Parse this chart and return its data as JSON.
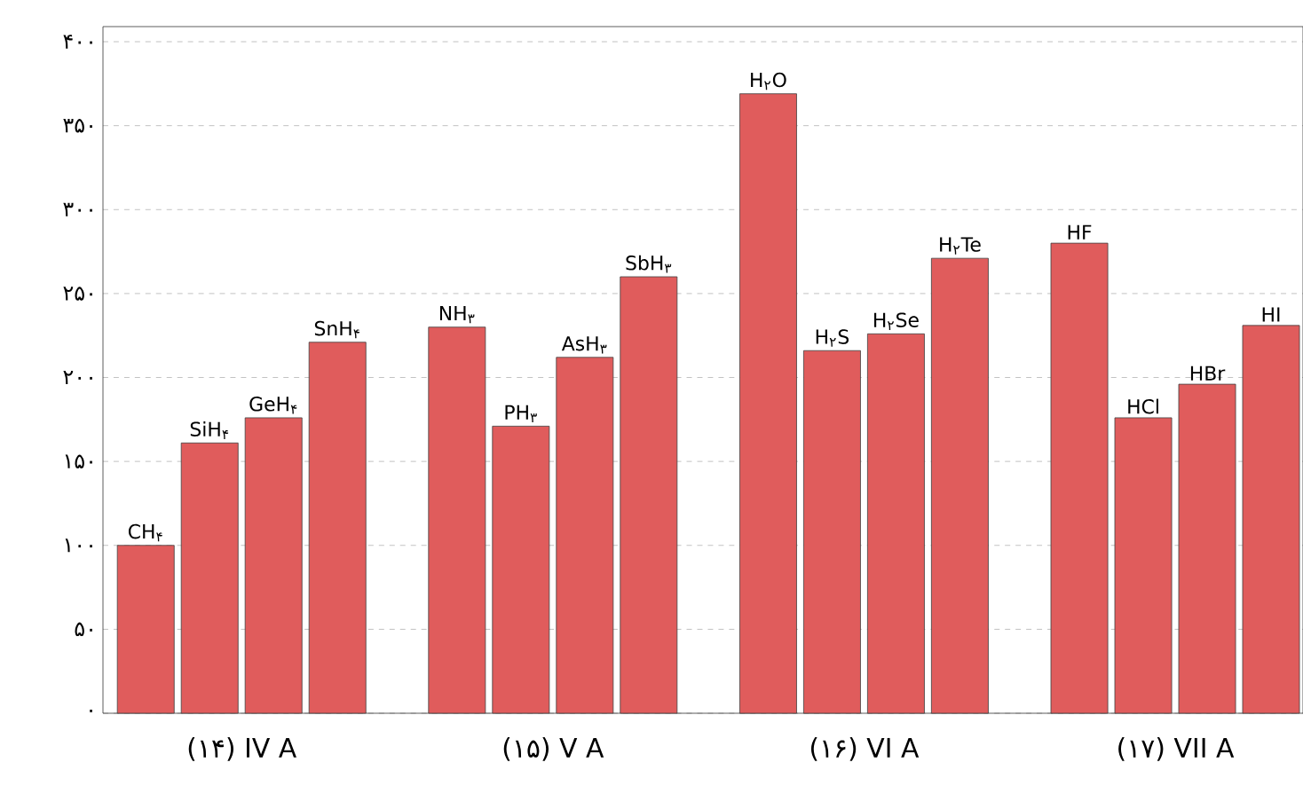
{
  "chart_data": {
    "type": "bar",
    "categories": [
      "CH$_{۴}$",
      "SiH$_{۴}$",
      "GeH$_{۴}$",
      "SnH$_{۴}$",
      "NH$_{۳}$",
      "PH$_{۳}$",
      "AsH$_{۳}$",
      "SbH$_{۳}$",
      "H$_{۲}$O",
      "H$_{۲}$S",
      "H$_{۲}$Se",
      "H$_{۲}$Te",
      "HF",
      "HCl",
      "HBr",
      "HI"
    ],
    "values": [
      100,
      161,
      176,
      221,
      230,
      171,
      212,
      260,
      369,
      216,
      226,
      271,
      280,
      176,
      196,
      231
    ],
    "color": "#e05c5c",
    "ylim": [
      0,
      409
    ],
    "yticks": [
      {
        "value": 0,
        "label": "۰"
      },
      {
        "value": 50,
        "label": "۵۰"
      },
      {
        "value": 100,
        "label": "۱۰۰"
      },
      {
        "value": 150,
        "label": "۱۵۰"
      },
      {
        "value": 200,
        "label": "۲۰۰"
      },
      {
        "value": 250,
        "label": "۲۵۰"
      },
      {
        "value": 300,
        "label": "۳۰۰"
      },
      {
        "value": 350,
        "label": "۳۵۰"
      },
      {
        "value": 400,
        "label": "۴۰۰"
      }
    ],
    "grid": "y",
    "annotations": [
      "(۱۴) IV A",
      "(۱۵) V A",
      "(۱۶) VI A",
      "(۱۷) VII A"
    ]
  }
}
